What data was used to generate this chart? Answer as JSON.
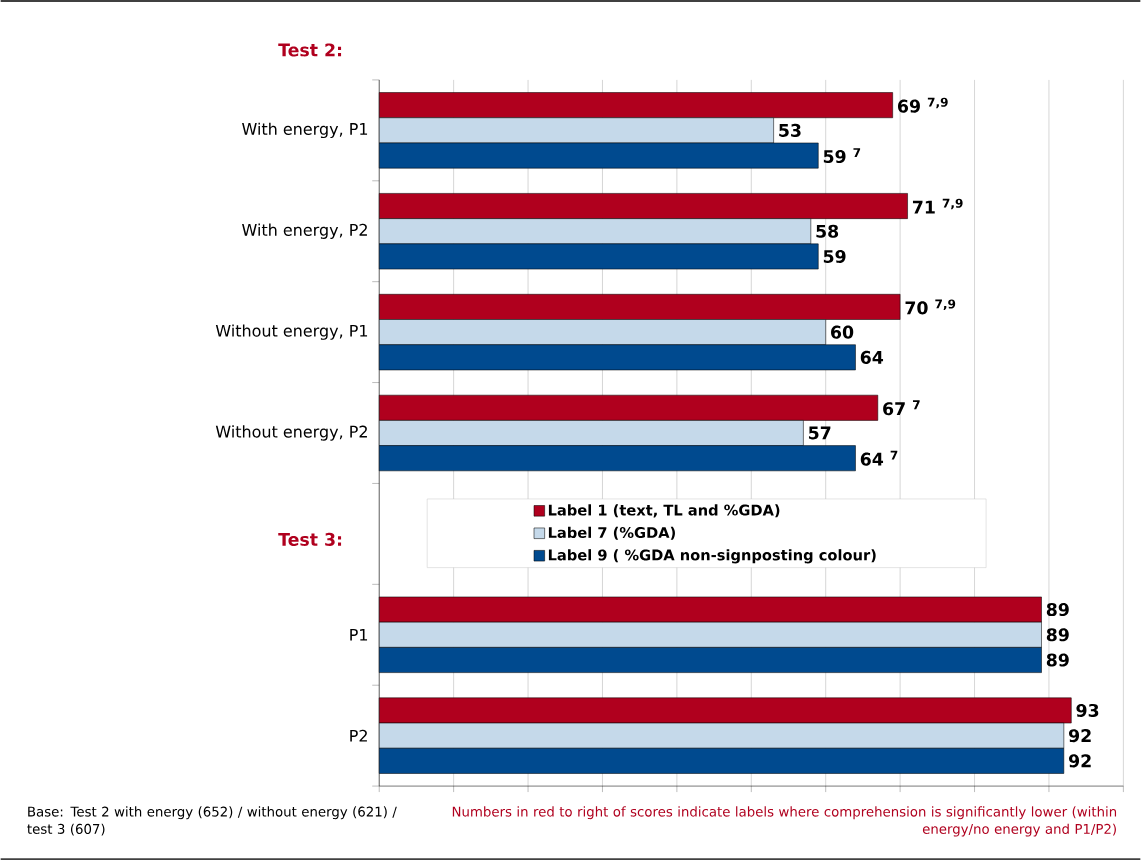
{
  "chart_data": {
    "type": "bar",
    "orientation": "horizontal",
    "categories": [
      "With energy, P1",
      "With energy, P2",
      "Without energy, P1",
      "Without energy, P2",
      null,
      "P1",
      "P2"
    ],
    "series": [
      {
        "name": "Label 1 (text, TL and %GDA)",
        "color": "#b0001e",
        "values": [
          69,
          71,
          70,
          67,
          null,
          89,
          93
        ],
        "value_labels": [
          "69 $^{7,9}$",
          "71 $^{7,9}$",
          "70 $^{7,9}$",
          "67 $^{7}$",
          null,
          "89",
          "93"
        ]
      },
      {
        "name": "Label 7 (%GDA)",
        "color": "#c5d9ea",
        "values": [
          53,
          58,
          60,
          57,
          null,
          89,
          92
        ],
        "value_labels": [
          "53",
          "58",
          "60",
          "57",
          null,
          "89",
          "92"
        ]
      },
      {
        "name": "Label 9 ( %GDA non-signposting colour)",
        "color": "#004a8f",
        "values": [
          59,
          59,
          64,
          64,
          null,
          89,
          92
        ],
        "value_labels": [
          "59 $^{7}$",
          "59",
          "64",
          "64 $^{7}$",
          null,
          "89",
          "92"
        ]
      }
    ],
    "xlim": [
      0,
      100
    ],
    "xticks": [
      {
        "value": 0,
        "label": null
      },
      {
        "value": 10,
        "label": null
      },
      {
        "value": 20,
        "label": null
      },
      {
        "value": 30,
        "label": null
      },
      {
        "value": 40,
        "label": null
      },
      {
        "value": 50,
        "label": null
      },
      {
        "value": 60,
        "label": null
      },
      {
        "value": 70,
        "label": null
      },
      {
        "value": 80,
        "label": null
      },
      {
        "value": 90,
        "label": null
      },
      {
        "value": 100,
        "label": null
      }
    ],
    "grid": "x",
    "tick_labels": "y",
    "legend": "bottom left",
    "annotations": [
      "Test 2:",
      "Test 3:",
      "Base: Test 2 with energy (652) / without energy (621) / test 3 (607)",
      "Numbers in red to right of scores indicate labels where comprehension is significantly lower (within energy/no energy and P1/P2)"
    ]
  }
}
